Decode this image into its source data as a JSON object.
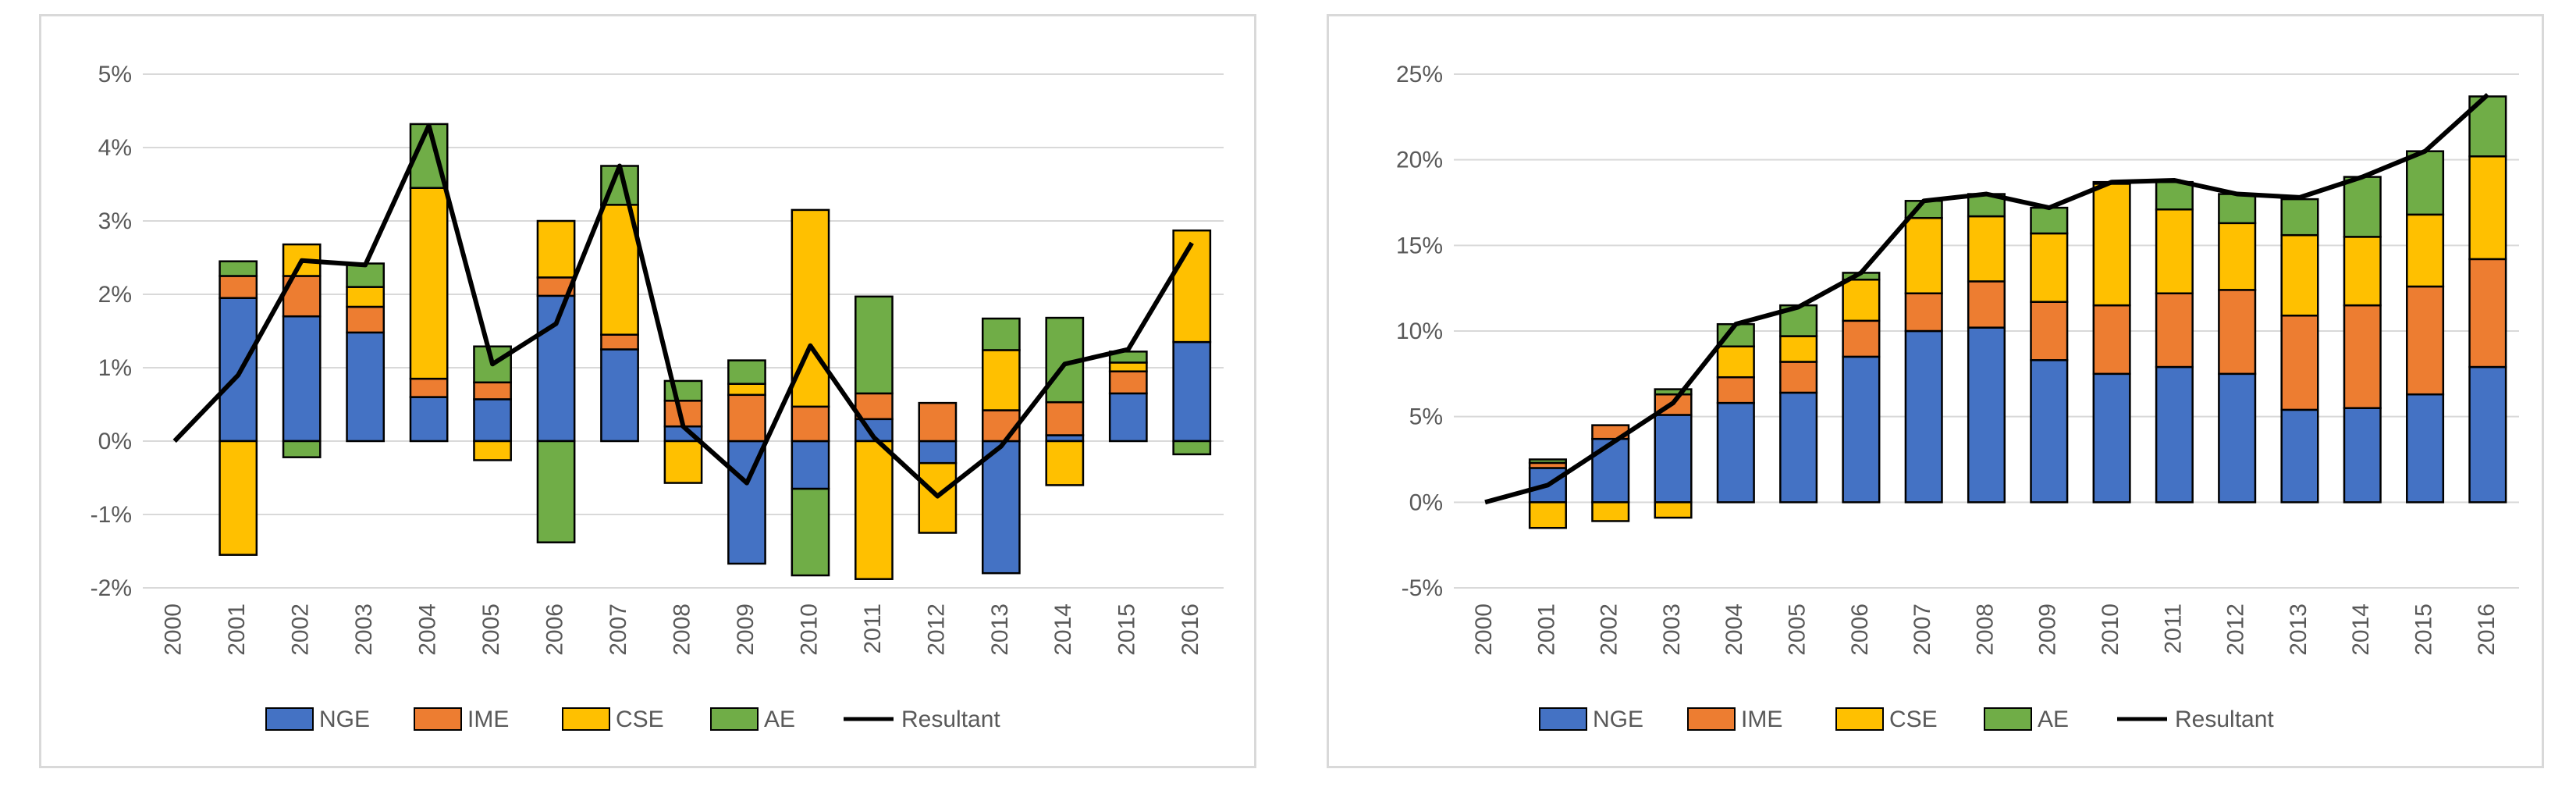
{
  "colors": {
    "NGE": "#4472c4",
    "IME": "#ed7d31",
    "CSE": "#ffc000",
    "AE": "#70ad47",
    "Resultant": "#000000",
    "gridline": "#d9d9d9",
    "text": "#595959"
  },
  "chart_data": [
    {
      "type": "bar",
      "stacked": true,
      "title": "",
      "xlabel": "",
      "ylabel": "",
      "ylim": [
        -0.02,
        0.05
      ],
      "ytick_values": [
        -0.02,
        -0.01,
        0,
        0.01,
        0.02,
        0.03,
        0.04,
        0.05
      ],
      "ytick_labels": [
        "-2%",
        "-1%",
        "0%",
        "1%",
        "2%",
        "3%",
        "4%",
        "5%"
      ],
      "grid": true,
      "legend_position": "bottom",
      "categories": [
        "2000",
        "2001",
        "2002",
        "2003",
        "2004",
        "2005",
        "2006",
        "2007",
        "2008",
        "2009",
        "2010",
        "2011",
        "2012",
        "2013",
        "2014",
        "2015",
        "2016"
      ],
      "series": [
        {
          "name": "NGE",
          "values": [
            0,
            0.0195,
            0.017,
            0.0148,
            0.006,
            0.0057,
            0.0198,
            0.0125,
            0.002,
            -0.0167,
            -0.0065,
            0.003,
            -0.003,
            -0.018,
            0.0008,
            0.0065,
            0.0135
          ]
        },
        {
          "name": "IME",
          "values": [
            0,
            0.003,
            0.0055,
            0.0035,
            0.0025,
            0.0023,
            0.0025,
            0.002,
            0.0035,
            0.0063,
            0.0047,
            0.0035,
            0.0052,
            0.0042,
            0.0045,
            0.003,
            0
          ]
        },
        {
          "name": "CSE",
          "values": [
            0,
            -0.0155,
            0.0043,
            0.0027,
            0.026,
            -0.0026,
            0.0077,
            0.0177,
            -0.0057,
            0.0015,
            0.0268,
            -0.0188,
            -0.0095,
            0.0082,
            -0.006,
            0.0012,
            0.0152
          ]
        },
        {
          "name": "AE",
          "values": [
            0,
            0.002,
            -0.0022,
            0.0032,
            0.0087,
            0.0049,
            -0.0138,
            0.0053,
            0.0027,
            0.0032,
            -0.0118,
            0.0132,
            0,
            0.0043,
            0.0115,
            0.0015,
            -0.0018
          ]
        }
      ],
      "resultant": {
        "name": "Resultant",
        "values": [
          0,
          0.009,
          0.0246,
          0.024,
          0.043,
          0.0105,
          0.016,
          0.0375,
          0.002,
          -0.0057,
          0.013,
          0.0005,
          -0.0075,
          -0.0007,
          0.0105,
          0.0125,
          0.027
        ]
      },
      "legend": [
        "NGE",
        "IME",
        "CSE",
        "AE",
        "Resultant"
      ]
    },
    {
      "type": "bar",
      "stacked": true,
      "title": "",
      "xlabel": "",
      "ylabel": "",
      "ylim": [
        -0.05,
        0.25
      ],
      "ytick_values": [
        -0.05,
        0,
        0.05,
        0.1,
        0.15,
        0.2,
        0.25
      ],
      "ytick_labels": [
        "-5%",
        "0%",
        "5%",
        "10%",
        "15%",
        "20%",
        "25%"
      ],
      "grid": true,
      "legend_position": "bottom",
      "categories": [
        "2000",
        "2001",
        "2002",
        "2003",
        "2004",
        "2005",
        "2006",
        "2007",
        "2008",
        "2009",
        "2010",
        "2011",
        "2012",
        "2013",
        "2014",
        "2015",
        "2016"
      ],
      "series": [
        {
          "name": "NGE",
          "values": [
            0,
            0.02,
            0.037,
            0.051,
            0.058,
            0.064,
            0.085,
            0.1,
            0.102,
            0.083,
            0.075,
            0.079,
            0.075,
            0.054,
            0.055,
            0.063,
            0.079
          ]
        },
        {
          "name": "IME",
          "values": [
            0,
            0.003,
            0.008,
            0.012,
            0.015,
            0.018,
            0.021,
            0.022,
            0.027,
            0.034,
            0.04,
            0.043,
            0.049,
            0.055,
            0.06,
            0.063,
            0.063
          ]
        },
        {
          "name": "CSE",
          "values": [
            0,
            -0.015,
            -0.011,
            -0.009,
            0.018,
            0.015,
            0.024,
            0.044,
            0.038,
            0.04,
            0.071,
            0.049,
            0.039,
            0.047,
            0.04,
            0.042,
            0.06
          ]
        },
        {
          "name": "AE",
          "values": [
            0,
            0.002,
            0,
            0.003,
            0.013,
            0.018,
            0.004,
            0.01,
            0.013,
            0.015,
            0.001,
            0.016,
            0.017,
            0.021,
            0.035,
            0.037,
            0.035
          ]
        }
      ],
      "resultant": {
        "name": "Resultant",
        "values": [
          0,
          0.01,
          0.034,
          0.058,
          0.104,
          0.114,
          0.134,
          0.176,
          0.18,
          0.172,
          0.187,
          0.188,
          0.18,
          0.178,
          0.19,
          0.205,
          0.238
        ]
      },
      "legend": [
        "NGE",
        "IME",
        "CSE",
        "AE",
        "Resultant"
      ]
    }
  ]
}
